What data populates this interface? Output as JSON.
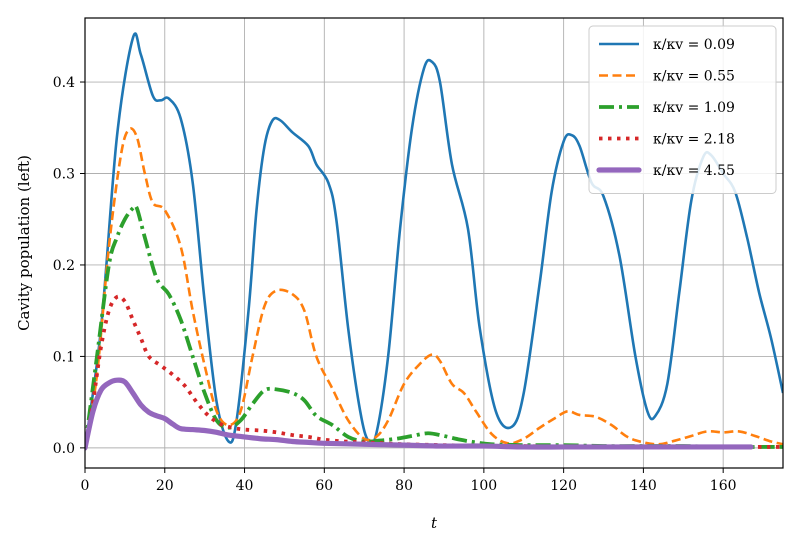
{
  "chart_data": {
    "type": "line",
    "xlabel": "t",
    "ylabel": "Cavity population (left)",
    "xlim": [
      0,
      175
    ],
    "ylim": [
      -0.022,
      0.47
    ],
    "x_ticks": [
      0,
      20,
      40,
      60,
      80,
      100,
      120,
      140,
      160
    ],
    "y_ticks": [
      0.0,
      0.1,
      0.2,
      0.3,
      0.4
    ],
    "x_tick_labels": [
      "0",
      "20",
      "40",
      "60",
      "80",
      "100",
      "120",
      "140",
      "160"
    ],
    "y_tick_labels": [
      "0.0",
      "0.1",
      "0.2",
      "0.3",
      "0.4"
    ],
    "grid": true,
    "legend_position": "top-right",
    "series": [
      {
        "name": "κ/κv = 0.09",
        "color": "#1f77b4",
        "style": "solid",
        "points": [
          [
            0,
            0
          ],
          [
            4,
            0.13
          ],
          [
            8,
            0.34
          ],
          [
            12,
            0.448
          ],
          [
            14,
            0.43
          ],
          [
            17,
            0.385
          ],
          [
            19,
            0.38
          ],
          [
            21,
            0.382
          ],
          [
            24,
            0.36
          ],
          [
            27,
            0.29
          ],
          [
            30,
            0.16
          ],
          [
            33,
            0.05
          ],
          [
            36,
            0.007
          ],
          [
            38,
            0.03
          ],
          [
            41,
            0.15
          ],
          [
            43,
            0.26
          ],
          [
            45,
            0.33
          ],
          [
            47,
            0.358
          ],
          [
            49,
            0.358
          ],
          [
            52,
            0.345
          ],
          [
            56,
            0.33
          ],
          [
            58,
            0.31
          ],
          [
            61,
            0.29
          ],
          [
            63,
            0.25
          ],
          [
            66,
            0.13
          ],
          [
            69,
            0.04
          ],
          [
            71,
            0.008
          ],
          [
            73,
            0.015
          ],
          [
            76,
            0.1
          ],
          [
            79,
            0.24
          ],
          [
            82,
            0.35
          ],
          [
            85,
            0.415
          ],
          [
            87,
            0.422
          ],
          [
            89,
            0.4
          ],
          [
            92,
            0.31
          ],
          [
            96,
            0.24
          ],
          [
            99,
            0.13
          ],
          [
            103,
            0.04
          ],
          [
            107,
            0.023
          ],
          [
            110,
            0.06
          ],
          [
            114,
            0.18
          ],
          [
            117,
            0.28
          ],
          [
            120,
            0.335
          ],
          [
            122,
            0.342
          ],
          [
            124,
            0.33
          ],
          [
            127,
            0.29
          ],
          [
            130,
            0.275
          ],
          [
            134,
            0.21
          ],
          [
            138,
            0.1
          ],
          [
            141,
            0.04
          ],
          [
            143,
            0.035
          ],
          [
            146,
            0.07
          ],
          [
            149,
            0.17
          ],
          [
            152,
            0.27
          ],
          [
            155,
            0.318
          ],
          [
            157,
            0.32
          ],
          [
            160,
            0.3
          ],
          [
            163,
            0.28
          ],
          [
            166,
            0.23
          ],
          [
            169,
            0.17
          ],
          [
            172,
            0.12
          ],
          [
            175,
            0.06
          ]
        ]
      },
      {
        "name": "κ/κv = 0.55",
        "color": "#ff7f0e",
        "style": "dashed",
        "points": [
          [
            0,
            0
          ],
          [
            3,
            0.08
          ],
          [
            6,
            0.22
          ],
          [
            9,
            0.32
          ],
          [
            11,
            0.348
          ],
          [
            13,
            0.34
          ],
          [
            15,
            0.3
          ],
          [
            17,
            0.268
          ],
          [
            20,
            0.26
          ],
          [
            24,
            0.22
          ],
          [
            27,
            0.15
          ],
          [
            30,
            0.09
          ],
          [
            33,
            0.04
          ],
          [
            36,
            0.025
          ],
          [
            39,
            0.04
          ],
          [
            42,
            0.1
          ],
          [
            45,
            0.155
          ],
          [
            48,
            0.172
          ],
          [
            52,
            0.168
          ],
          [
            55,
            0.15
          ],
          [
            58,
            0.1
          ],
          [
            62,
            0.065
          ],
          [
            66,
            0.03
          ],
          [
            70,
            0.01
          ],
          [
            73,
            0.012
          ],
          [
            76,
            0.03
          ],
          [
            80,
            0.07
          ],
          [
            84,
            0.092
          ],
          [
            87,
            0.102
          ],
          [
            89,
            0.095
          ],
          [
            92,
            0.07
          ],
          [
            95,
            0.06
          ],
          [
            98,
            0.04
          ],
          [
            102,
            0.015
          ],
          [
            106,
            0.005
          ],
          [
            110,
            0.01
          ],
          [
            114,
            0.022
          ],
          [
            118,
            0.033
          ],
          [
            121,
            0.04
          ],
          [
            124,
            0.036
          ],
          [
            128,
            0.034
          ],
          [
            132,
            0.025
          ],
          [
            136,
            0.012
          ],
          [
            140,
            0.006
          ],
          [
            144,
            0.004
          ],
          [
            148,
            0.008
          ],
          [
            152,
            0.013
          ],
          [
            156,
            0.018
          ],
          [
            160,
            0.017
          ],
          [
            164,
            0.018
          ],
          [
            168,
            0.013
          ],
          [
            172,
            0.007
          ],
          [
            175,
            0.004
          ]
        ]
      },
      {
        "name": "κ/κv = 1.09",
        "color": "#2ca02c",
        "style": "dashdot",
        "points": [
          [
            0,
            0
          ],
          [
            3,
            0.1
          ],
          [
            6,
            0.2
          ],
          [
            8,
            0.23
          ],
          [
            10,
            0.25
          ],
          [
            12,
            0.262
          ],
          [
            13,
            0.262
          ],
          [
            15,
            0.23
          ],
          [
            18,
            0.185
          ],
          [
            21,
            0.168
          ],
          [
            24,
            0.14
          ],
          [
            27,
            0.1
          ],
          [
            30,
            0.06
          ],
          [
            33,
            0.03
          ],
          [
            36,
            0.022
          ],
          [
            39,
            0.03
          ],
          [
            42,
            0.048
          ],
          [
            45,
            0.063
          ],
          [
            48,
            0.064
          ],
          [
            52,
            0.06
          ],
          [
            55,
            0.052
          ],
          [
            58,
            0.035
          ],
          [
            62,
            0.025
          ],
          [
            66,
            0.012
          ],
          [
            70,
            0.007
          ],
          [
            74,
            0.008
          ],
          [
            78,
            0.01
          ],
          [
            82,
            0.013
          ],
          [
            86,
            0.016
          ],
          [
            90,
            0.013
          ],
          [
            94,
            0.009
          ],
          [
            98,
            0.006
          ],
          [
            102,
            0.004
          ],
          [
            110,
            0.003
          ],
          [
            120,
            0.003
          ],
          [
            130,
            0.002
          ],
          [
            140,
            0.002
          ],
          [
            150,
            0.002
          ],
          [
            160,
            0.001
          ],
          [
            170,
            0.001
          ],
          [
            175,
            0.001
          ]
        ]
      },
      {
        "name": "κ/κv = 2.18",
        "color": "#d62728",
        "style": "dotted",
        "points": [
          [
            0,
            0
          ],
          [
            2,
            0.05
          ],
          [
            4,
            0.11
          ],
          [
            6,
            0.15
          ],
          [
            8,
            0.165
          ],
          [
            10,
            0.16
          ],
          [
            12,
            0.14
          ],
          [
            14,
            0.12
          ],
          [
            16,
            0.1
          ],
          [
            19,
            0.09
          ],
          [
            22,
            0.08
          ],
          [
            25,
            0.068
          ],
          [
            28,
            0.05
          ],
          [
            31,
            0.035
          ],
          [
            34,
            0.026
          ],
          [
            37,
            0.022
          ],
          [
            40,
            0.02
          ],
          [
            44,
            0.019
          ],
          [
            48,
            0.017
          ],
          [
            52,
            0.014
          ],
          [
            56,
            0.012
          ],
          [
            60,
            0.009
          ],
          [
            65,
            0.007
          ],
          [
            70,
            0.006
          ],
          [
            75,
            0.005
          ],
          [
            80,
            0.004
          ],
          [
            90,
            0.003
          ],
          [
            100,
            0.002
          ],
          [
            110,
            0.002
          ],
          [
            120,
            0.001
          ],
          [
            130,
            0.001
          ],
          [
            140,
            0.001
          ],
          [
            150,
            0.001
          ],
          [
            160,
            0.001
          ],
          [
            170,
            0.001
          ],
          [
            175,
            0.001
          ]
        ]
      },
      {
        "name": "κ/κv = 4.55",
        "color": "#9467bd",
        "style": "solid-thick",
        "points": [
          [
            0,
            0
          ],
          [
            2,
            0.04
          ],
          [
            4,
            0.063
          ],
          [
            6,
            0.071
          ],
          [
            8,
            0.074
          ],
          [
            10,
            0.072
          ],
          [
            12,
            0.06
          ],
          [
            14,
            0.047
          ],
          [
            16,
            0.039
          ],
          [
            18,
            0.035
          ],
          [
            20,
            0.032
          ],
          [
            22,
            0.026
          ],
          [
            24,
            0.021
          ],
          [
            27,
            0.02
          ],
          [
            30,
            0.019
          ],
          [
            33,
            0.017
          ],
          [
            36,
            0.014
          ],
          [
            40,
            0.012
          ],
          [
            44,
            0.01
          ],
          [
            48,
            0.009
          ],
          [
            52,
            0.007
          ],
          [
            56,
            0.006
          ],
          [
            60,
            0.005
          ],
          [
            70,
            0.004
          ],
          [
            80,
            0.003
          ],
          [
            90,
            0.002
          ],
          [
            100,
            0.002
          ],
          [
            110,
            0.001
          ],
          [
            120,
            0.001
          ],
          [
            130,
            0.001
          ],
          [
            140,
            0.001
          ],
          [
            150,
            0.001
          ],
          [
            160,
            0.001
          ],
          [
            167,
            0.001
          ]
        ]
      }
    ]
  }
}
